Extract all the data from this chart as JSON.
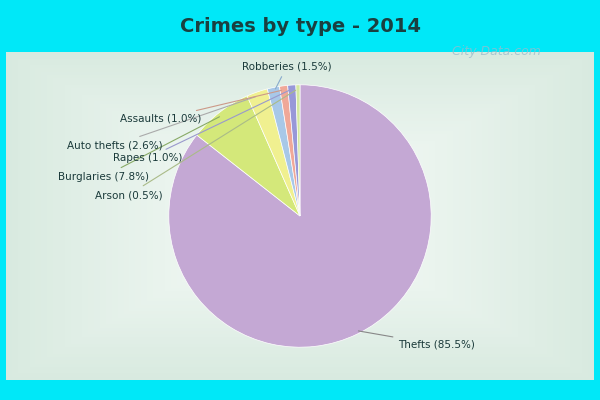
{
  "title": "Crimes by type - 2014",
  "slices": [
    {
      "label": "Thefts",
      "pct": 85.5,
      "color": "#C4A8D4"
    },
    {
      "label": "Burglaries",
      "pct": 7.8,
      "color": "#D4E87A"
    },
    {
      "label": "Auto thefts",
      "pct": 2.6,
      "color": "#F0F090"
    },
    {
      "label": "Robberies",
      "pct": 1.5,
      "color": "#A8C8E8"
    },
    {
      "label": "Assaults",
      "pct": 1.0,
      "color": "#F0A898"
    },
    {
      "label": "Rapes",
      "pct": 1.0,
      "color": "#9898D8"
    },
    {
      "label": "Arson",
      "pct": 0.5,
      "color": "#D4E8A0"
    }
  ],
  "title_color": "#1A4040",
  "label_color": "#1A3A3A",
  "watermark": "  City-Data.com",
  "cyan_border": "#00E8F8",
  "bg_corner": "#88D8C0",
  "bg_center": "#E8F4F0"
}
